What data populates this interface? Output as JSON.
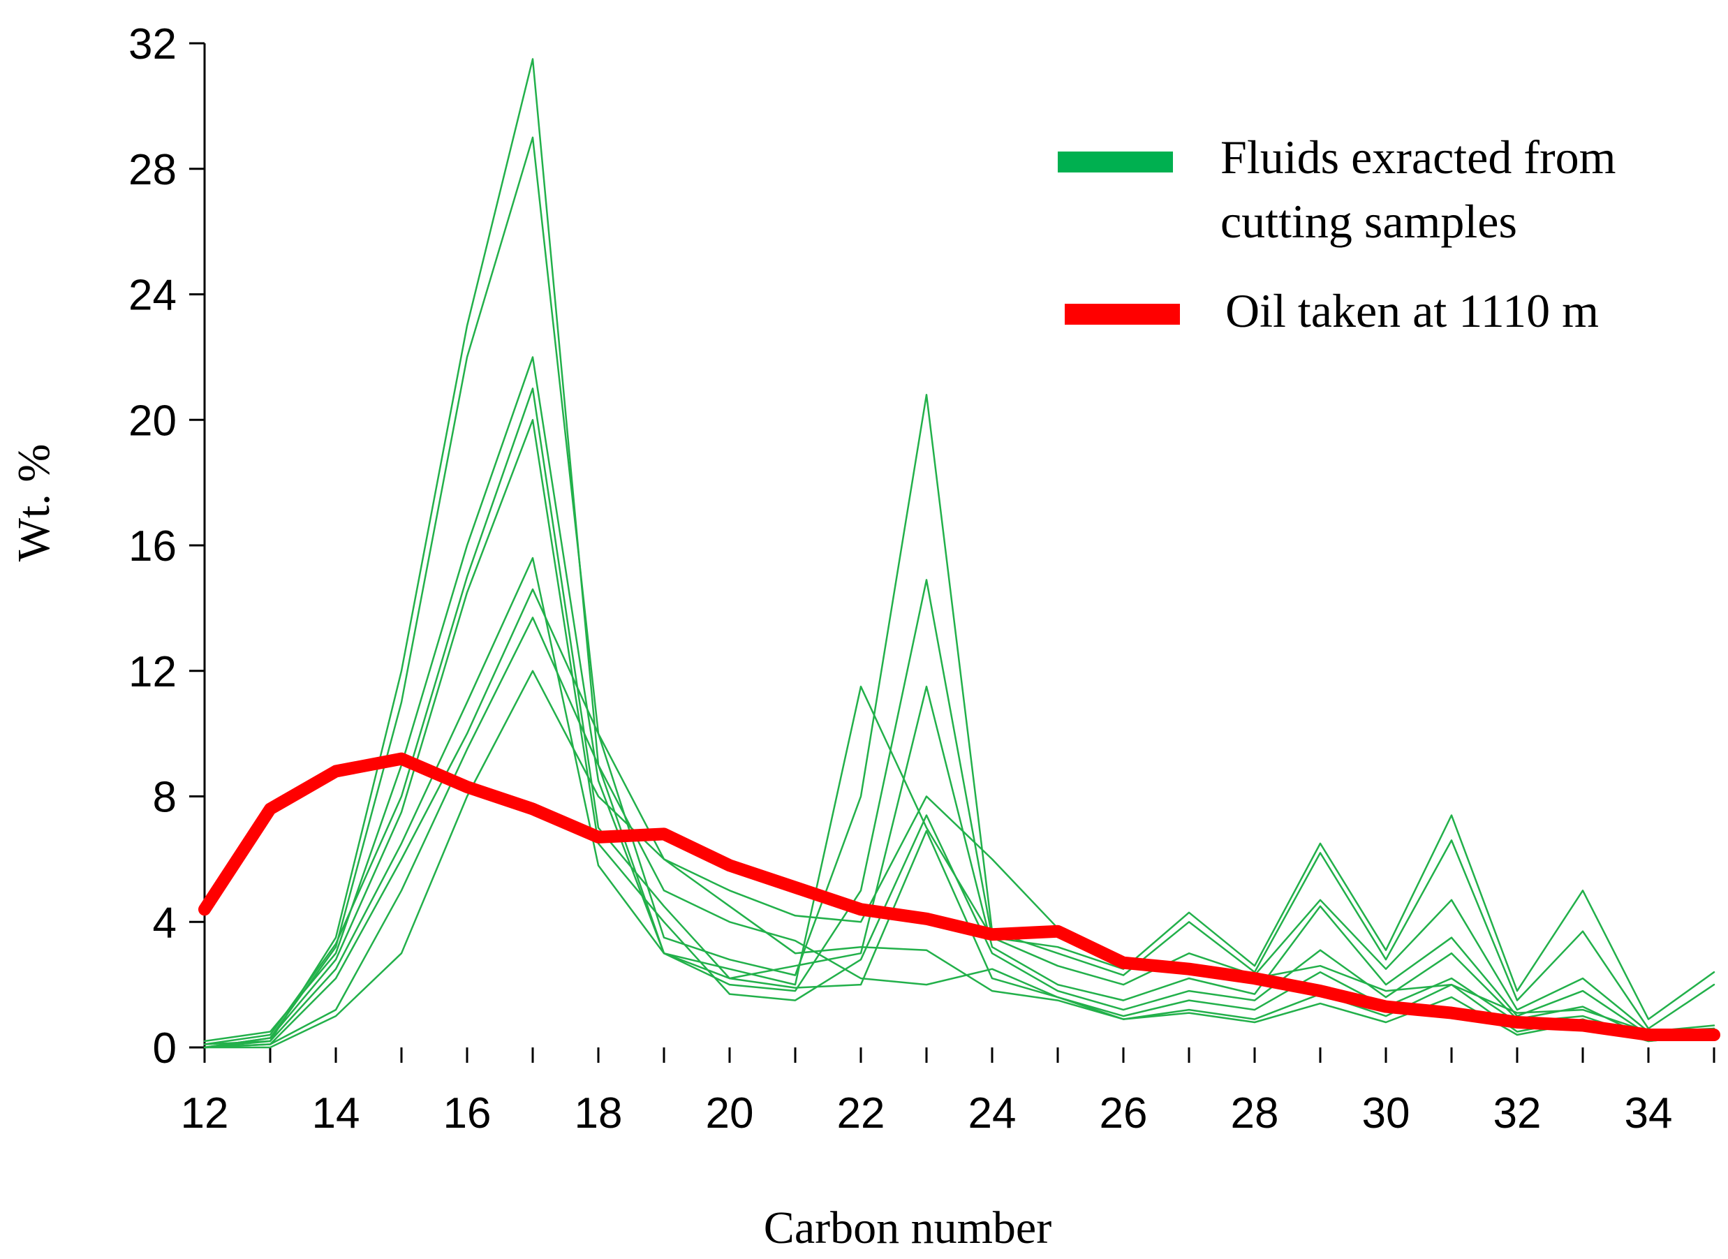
{
  "chart_data": {
    "type": "line",
    "title": "",
    "xlabel": "Carbon number",
    "ylabel": "Wt. %",
    "xlim": [
      12,
      35
    ],
    "ylim": [
      0,
      32
    ],
    "xticks": [
      12,
      14,
      16,
      18,
      20,
      22,
      24,
      26,
      28,
      30,
      32,
      34
    ],
    "yticks": [
      0,
      4,
      8,
      12,
      16,
      20,
      24,
      28,
      32
    ],
    "x": [
      12,
      13,
      14,
      15,
      16,
      17,
      18,
      19,
      20,
      21,
      22,
      23,
      24,
      25,
      26,
      27,
      28,
      29,
      30,
      31,
      32,
      33,
      34,
      35
    ],
    "legend": [
      {
        "label": "Fluids exracted from",
        "label2": "cutting  samples",
        "color": "#00b050"
      },
      {
        "label": "Oil taken  at 1110 m",
        "color": "#ff0000"
      }
    ],
    "series": [
      {
        "name": "Fluids exracted from cutting samples 1",
        "group": "fluids",
        "color": "#22b04a",
        "values": [
          0.0,
          0.2,
          3.5,
          12.0,
          23.0,
          31.5,
          9.0,
          3.0,
          2.5,
          2.0,
          11.5,
          7.0,
          3.5,
          3.2,
          2.5,
          4.3,
          2.6,
          6.5,
          3.1,
          7.4,
          1.8,
          5.0,
          0.9,
          2.4
        ]
      },
      {
        "name": "Fluids exracted from cutting samples 2",
        "group": "fluids",
        "color": "#22b04a",
        "values": [
          0.0,
          0.3,
          3.2,
          11.0,
          22.0,
          29.0,
          10.0,
          3.5,
          2.8,
          2.3,
          8.0,
          20.8,
          3.7,
          3.0,
          2.3,
          4.0,
          2.4,
          6.2,
          2.8,
          6.6,
          1.5,
          3.7,
          0.6,
          2.0
        ]
      },
      {
        "name": "Fluids exracted from cutting samples 3",
        "group": "fluids",
        "color": "#22b04a",
        "values": [
          0.2,
          0.5,
          3.0,
          9.0,
          16.0,
          22.0,
          8.5,
          3.0,
          2.0,
          1.8,
          5.0,
          14.9,
          3.5,
          2.6,
          2.0,
          3.0,
          2.3,
          4.7,
          2.5,
          4.7,
          1.2,
          2.2,
          0.5,
          0.7
        ]
      },
      {
        "name": "Fluids exracted from cutting samples 4",
        "group": "fluids",
        "color": "#22b04a",
        "values": [
          0.1,
          0.4,
          3.3,
          8.0,
          15.0,
          21.0,
          7.0,
          4.5,
          2.2,
          2.6,
          3.0,
          11.5,
          3.2,
          2.0,
          1.5,
          2.2,
          1.7,
          4.5,
          2.0,
          3.5,
          1.0,
          1.8,
          0.4,
          0.6
        ]
      },
      {
        "name": "Fluids exracted from cutting samples 5",
        "group": "fluids",
        "color": "#22b04a",
        "values": [
          0.0,
          0.3,
          2.8,
          7.5,
          14.5,
          20.0,
          6.5,
          4.0,
          1.7,
          1.5,
          2.8,
          7.4,
          3.0,
          1.8,
          1.2,
          1.8,
          1.5,
          3.1,
          1.6,
          3.0,
          0.9,
          1.3,
          0.3,
          0.5
        ]
      },
      {
        "name": "Fluids exracted from cutting samples 6",
        "group": "fluids",
        "color": "#22b04a",
        "values": [
          0.1,
          0.2,
          2.5,
          6.5,
          11.0,
          15.6,
          5.8,
          3.0,
          2.2,
          1.9,
          2.0,
          6.9,
          2.2,
          1.6,
          1.0,
          1.5,
          1.2,
          2.4,
          1.3,
          2.2,
          0.8,
          1.0,
          0.3,
          0.4
        ]
      },
      {
        "name": "Fluids exracted from cutting samples 7",
        "group": "fluids",
        "color": "#22b04a",
        "values": [
          0.0,
          0.1,
          2.2,
          6.0,
          10.0,
          14.6,
          10.0,
          6.0,
          4.5,
          3.0,
          3.2,
          3.1,
          1.8,
          1.5,
          0.9,
          1.2,
          0.9,
          1.7,
          1.0,
          2.0,
          0.5,
          0.9,
          0.2,
          0.4
        ]
      },
      {
        "name": "Fluids exracted from cutting samples 8",
        "group": "fluids",
        "color": "#22b04a",
        "values": [
          0.0,
          0.1,
          1.2,
          5.0,
          9.5,
          13.7,
          9.0,
          5.0,
          4.0,
          3.4,
          2.2,
          2.0,
          2.5,
          1.6,
          0.9,
          1.1,
          0.8,
          1.4,
          0.8,
          1.6,
          0.4,
          0.8,
          0.2,
          0.4
        ]
      },
      {
        "name": "Fluids exracted from cutting samples 9",
        "group": "fluids",
        "color": "#22b04a",
        "values": [
          0.0,
          0.0,
          1.0,
          3.0,
          8.0,
          12.0,
          8.0,
          6.0,
          5.0,
          4.2,
          4.0,
          8.0,
          6.0,
          3.8,
          2.6,
          2.4,
          2.2,
          2.6,
          1.8,
          2.0,
          1.1,
          1.2,
          0.5,
          0.6
        ]
      },
      {
        "name": "Oil taken  at 1110 m",
        "group": "oil",
        "color": "#ff0000",
        "values": [
          4.4,
          7.6,
          8.8,
          9.2,
          8.3,
          7.6,
          6.7,
          6.8,
          5.8,
          5.1,
          4.4,
          4.1,
          3.6,
          3.7,
          2.7,
          2.5,
          2.2,
          1.8,
          1.3,
          1.1,
          0.8,
          0.7,
          0.4,
          0.4
        ]
      }
    ]
  }
}
